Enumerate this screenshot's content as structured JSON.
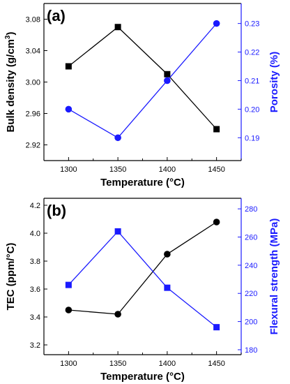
{
  "colors": {
    "black": "#000000",
    "blue": "#1a1aff"
  },
  "chart_data": [
    {
      "type": "line",
      "panel_label": "(a)",
      "xlabel": "Temperature (°C)",
      "x": [
        1300,
        1350,
        1400,
        1450
      ],
      "x_ticks": [
        "1300",
        "1350",
        "1400",
        "1450"
      ],
      "xlim": [
        1275,
        1475
      ],
      "ylabel_left": "Bulk density (g/cm3)",
      "ylabel_left_parts": {
        "main": "Bulk density (g/cm",
        "sup": "3",
        "tail": ")"
      },
      "ylabel_right": "Porosity (%)",
      "ylim_left": [
        2.9,
        3.1
      ],
      "yticks_left": [
        "2.92",
        "2.96",
        "3.00",
        "3.04",
        "3.08"
      ],
      "ylim_right": [
        0.182,
        0.237
      ],
      "yticks_right": [
        "0.19",
        "0.20",
        "0.21",
        "0.22",
        "0.23"
      ],
      "grid": false,
      "series": [
        {
          "axis": "left",
          "color": "#000000",
          "marker": "square",
          "values": [
            3.02,
            3.07,
            3.01,
            2.94
          ]
        },
        {
          "axis": "right",
          "color": "#1a1aff",
          "marker": "circle",
          "values": [
            0.2,
            0.19,
            0.21,
            0.23
          ]
        }
      ]
    },
    {
      "type": "line",
      "panel_label": "(b)",
      "xlabel": "Temperature (°C)",
      "x": [
        1300,
        1350,
        1400,
        1450
      ],
      "x_ticks": [
        "1300",
        "1350",
        "1400",
        "1450"
      ],
      "xlim": [
        1275,
        1475
      ],
      "ylabel_left": "TEC (ppm/°C)",
      "ylabel_right": "Flexural strength (MPa)",
      "ylim_left": [
        3.13,
        4.25
      ],
      "yticks_left": [
        "3.2",
        "3.4",
        "3.6",
        "3.8",
        "4.0",
        "4.2"
      ],
      "ylim_right": [
        176.5,
        287.5
      ],
      "yticks_right": [
        "180",
        "200",
        "220",
        "240",
        "260",
        "280"
      ],
      "grid": false,
      "series": [
        {
          "axis": "left",
          "color": "#000000",
          "marker": "circle",
          "values": [
            3.45,
            3.42,
            3.85,
            4.08
          ]
        },
        {
          "axis": "right",
          "color": "#1a1aff",
          "marker": "square",
          "values": [
            226,
            264,
            224,
            196
          ]
        }
      ]
    }
  ]
}
